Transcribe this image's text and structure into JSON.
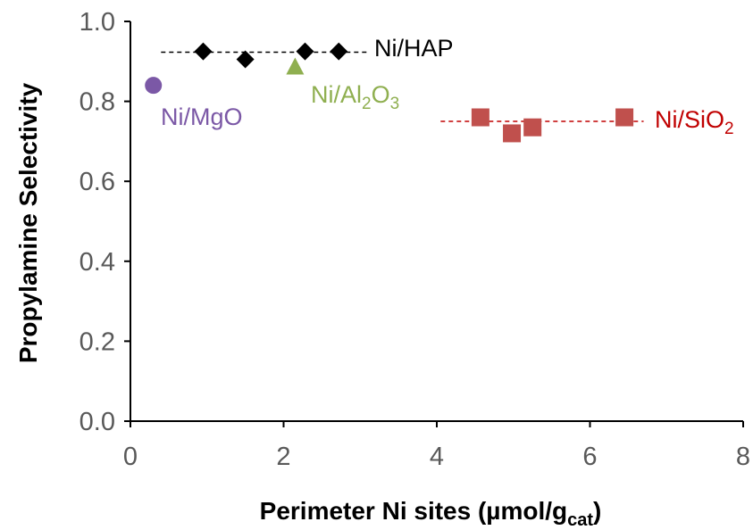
{
  "chart_data": {
    "type": "scatter",
    "xlabel": {
      "main": "Perimeter Ni sites (µmol/g",
      "sub": "cat",
      "close": ")"
    },
    "ylabel": "Propylamine Selectivity",
    "xlim": [
      0,
      8
    ],
    "ylim": [
      0,
      1.0
    ],
    "x_ticks": [
      "0",
      "2",
      "4",
      "6",
      "8"
    ],
    "y_ticks": [
      "0.0",
      "0.2",
      "0.4",
      "0.6",
      "0.8",
      "1.0"
    ],
    "grid": false,
    "series": [
      {
        "name": "Ni/HAP",
        "label_parts": {
          "a": "Ni/HAP"
        },
        "color": "#000000",
        "marker": "diamond",
        "points": [
          [
            0.95,
            0.925
          ],
          [
            1.5,
            0.905
          ],
          [
            2.28,
            0.925
          ],
          [
            2.72,
            0.925
          ]
        ],
        "trend": {
          "y": 0.923,
          "x_range": [
            0.4,
            3.1
          ]
        }
      },
      {
        "name": "Ni/Al2O3",
        "label_parts": {
          "a": "Ni/Al",
          "s1": "2",
          "b": "O",
          "s2": "3"
        },
        "color": "#8faf50",
        "marker": "triangle",
        "points": [
          [
            2.15,
            0.885
          ]
        ]
      },
      {
        "name": "Ni/MgO",
        "label_parts": {
          "a": "Ni/MgO"
        },
        "color": "#7b58a6",
        "marker": "circle",
        "points": [
          [
            0.3,
            0.84
          ]
        ]
      },
      {
        "name": "Ni/SiO2",
        "label_parts": {
          "a": "Ni/SiO",
          "s1": "2"
        },
        "color": "#c0504d",
        "label_color": "#c00000",
        "marker": "square",
        "points": [
          [
            4.57,
            0.76
          ],
          [
            4.98,
            0.72
          ],
          [
            5.25,
            0.735
          ],
          [
            6.45,
            0.76
          ]
        ],
        "trend": {
          "y": 0.75,
          "x_range": [
            4.05,
            6.7
          ]
        }
      }
    ]
  }
}
